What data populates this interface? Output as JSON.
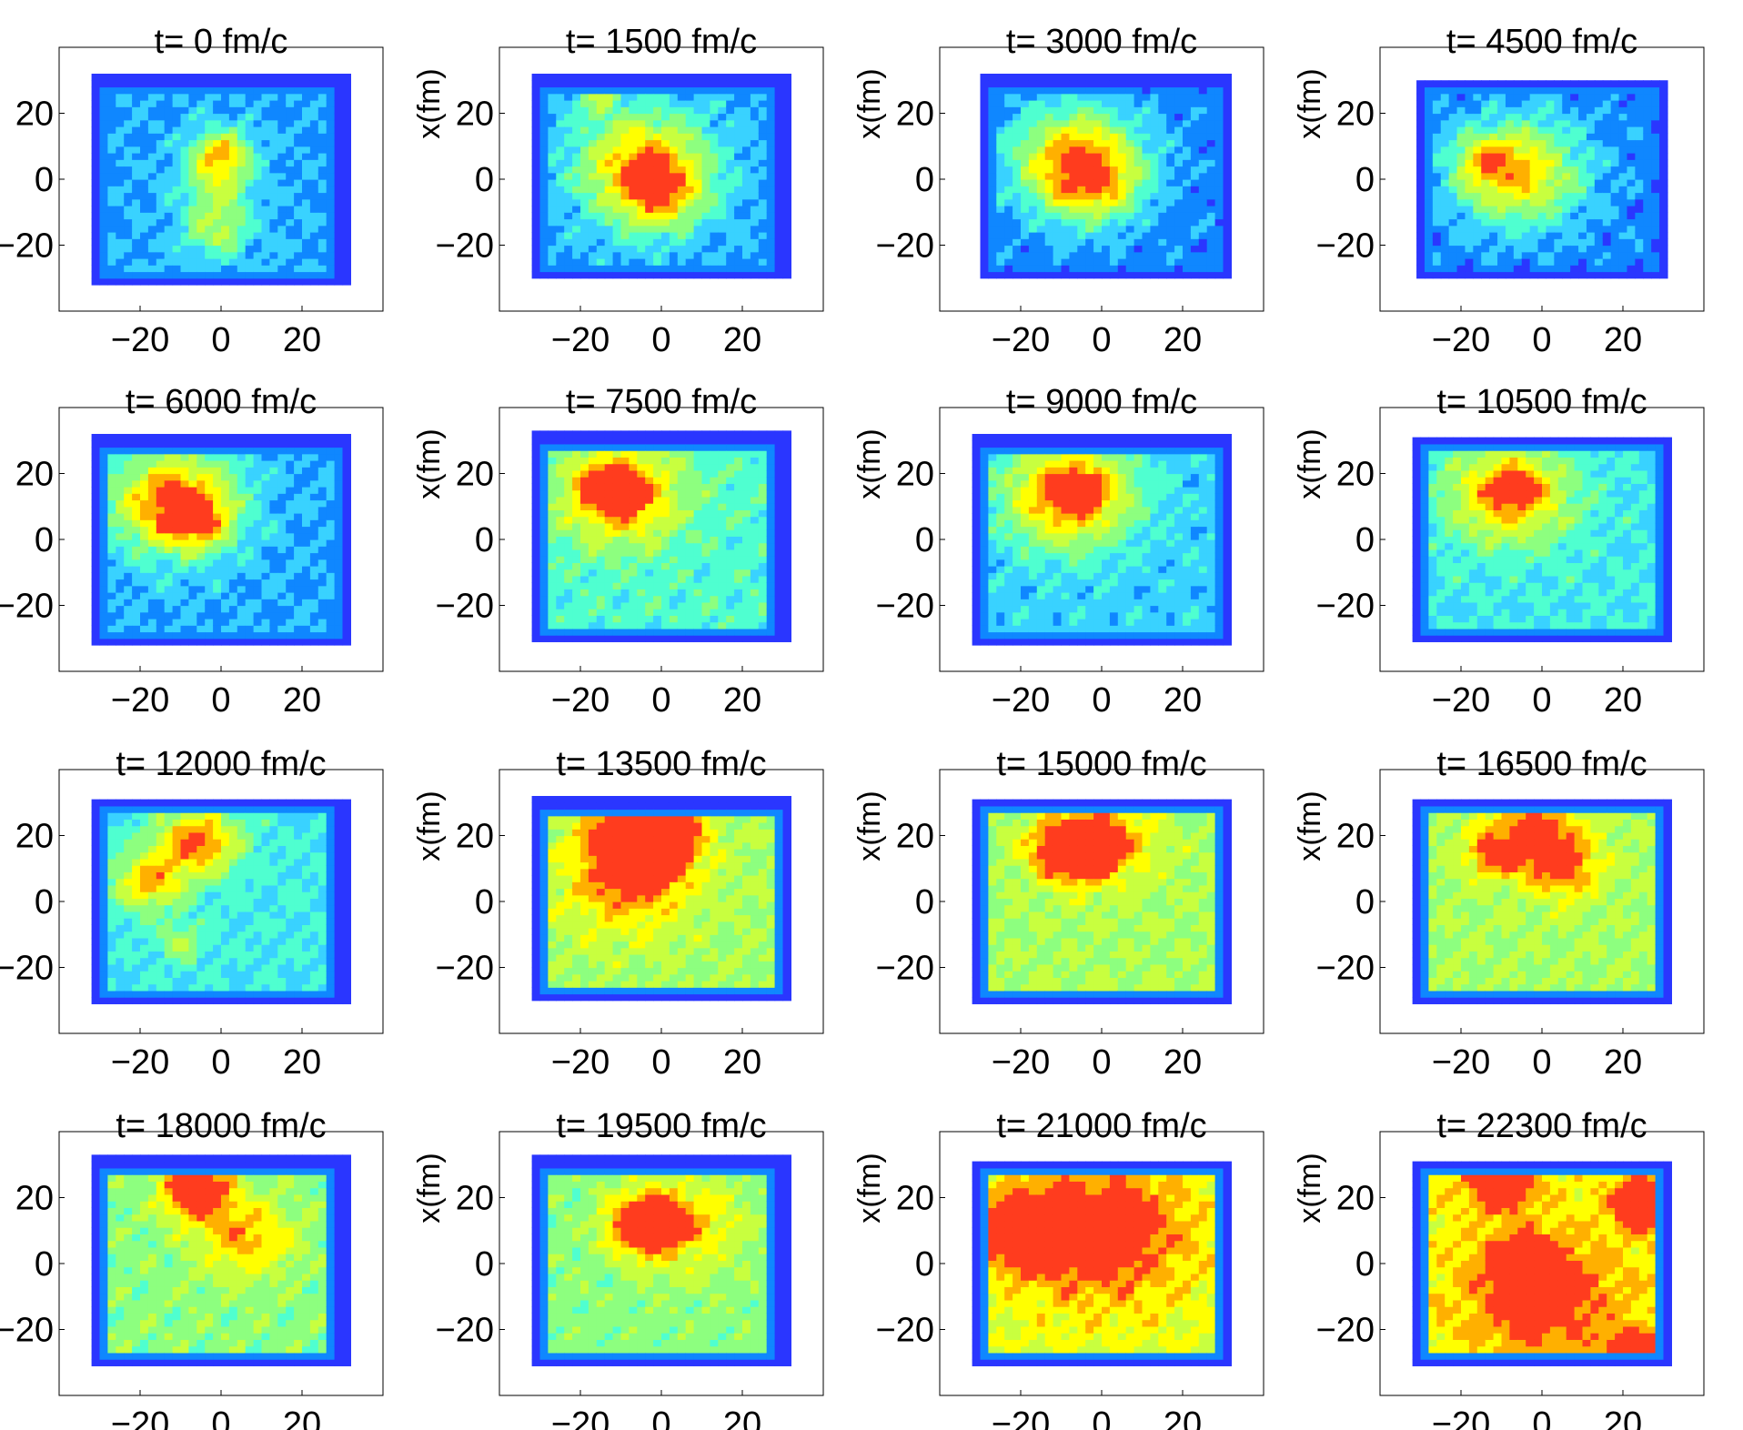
{
  "chart_data": {
    "type": "heatmap",
    "colormap": [
      "#7f00ff",
      "#2a36ff",
      "#0f87ff",
      "#39d2ff",
      "#4fffd0",
      "#8dff7f",
      "#c8ff3f",
      "#ffff00",
      "#ffb000",
      "#ff3c1e",
      "#d80000"
    ],
    "panel_xticks": [
      -20,
      0,
      20
    ],
    "panel_yticks": [
      20,
      0,
      -20
    ],
    "xlim": [
      -40,
      40
    ],
    "ylim": [
      -40,
      40
    ],
    "ylabel": "x(fm)",
    "panels": [
      {
        "title": "t= 0 fm/c",
        "level": 0.5,
        "bg": 0.3,
        "extent": [
          -32,
          31,
          -32,
          31
        ],
        "blobs": [
          [
            0,
            8,
            5,
            1.0
          ],
          [
            -1,
            -2,
            6,
            0.55
          ],
          [
            -1,
            -15,
            6,
            0.6
          ]
        ]
      },
      {
        "title": "t= 1500 fm/c",
        "level": 0.6,
        "bg": 0.3,
        "extent": [
          -32,
          31,
          -30,
          31
        ],
        "blobs": [
          [
            -4,
            4,
            11,
            1.0
          ],
          [
            0,
            -6,
            7,
            0.5
          ],
          [
            -16,
            24,
            4,
            0.4
          ]
        ]
      },
      {
        "title": "t= 3000 fm/c",
        "level": 0.6,
        "bg": 0.25,
        "extent": [
          -30,
          32,
          -30,
          31
        ],
        "blobs": [
          [
            -6,
            6,
            11,
            1.0
          ],
          [
            -2,
            -2,
            8,
            0.5
          ]
        ]
      },
      {
        "title": "t= 4500 fm/c",
        "level": 0.55,
        "bg": 0.25,
        "extent": [
          -31,
          31,
          -30,
          30
        ],
        "blobs": [
          [
            -6,
            2,
            11,
            1.0
          ],
          [
            -14,
            6,
            5,
            0.5
          ]
        ]
      },
      {
        "title": "t= 6000 fm/c",
        "level": 0.6,
        "bg": 0.3,
        "extent": [
          -32,
          32,
          -32,
          31
        ],
        "blobs": [
          [
            -12,
            12,
            11,
            1.0
          ],
          [
            -6,
            6,
            6,
            0.6
          ]
        ]
      },
      {
        "title": "t= 7500 fm/c",
        "level": 0.55,
        "bg": 0.45,
        "extent": [
          -32,
          31,
          -31,
          32
        ],
        "blobs": [
          [
            -10,
            14,
            10,
            0.95
          ],
          [
            -14,
            16,
            4,
            0.7
          ]
        ]
      },
      {
        "title": "t= 9000 fm/c",
        "level": 0.6,
        "bg": 0.35,
        "extent": [
          -32,
          32,
          -32,
          31
        ],
        "blobs": [
          [
            -8,
            14,
            11,
            1.0
          ],
          [
            -6,
            14,
            4,
            0.6
          ]
        ]
      },
      {
        "title": "t= 10500 fm/c",
        "level": 0.55,
        "bg": 0.4,
        "extent": [
          -32,
          32,
          -31,
          31
        ],
        "blobs": [
          [
            -8,
            14,
            10,
            0.95
          ],
          [
            -6,
            16,
            3,
            0.6
          ]
        ]
      },
      {
        "title": "t= 12000 fm/c",
        "level": 0.55,
        "bg": 0.4,
        "extent": [
          -32,
          31,
          -31,
          31
        ],
        "blobs": [
          [
            -6,
            18,
            7,
            1.0
          ],
          [
            -18,
            6,
            6,
            0.75
          ],
          [
            -10,
            -12,
            4,
            0.4
          ]
        ]
      },
      {
        "title": "t= 13500 fm/c",
        "level": 0.65,
        "bg": 0.6,
        "extent": [
          -32,
          32,
          -30,
          31
        ],
        "blobs": [
          [
            -6,
            20,
            8,
            1.0
          ],
          [
            0,
            20,
            6,
            0.7
          ],
          [
            -8,
            6,
            10,
            0.5
          ]
        ]
      },
      {
        "title": "t= 15000 fm/c",
        "level": 0.6,
        "bg": 0.6,
        "extent": [
          -32,
          32,
          -31,
          31
        ],
        "blobs": [
          [
            -8,
            16,
            6,
            1.0
          ],
          [
            0,
            18,
            8,
            0.6
          ]
        ]
      },
      {
        "title": "t= 16500 fm/c",
        "level": 0.55,
        "bg": 0.6,
        "extent": [
          -32,
          32,
          -31,
          31
        ],
        "blobs": [
          [
            -2,
            20,
            8,
            0.8
          ],
          [
            -12,
            14,
            4,
            0.6
          ],
          [
            6,
            10,
            6,
            0.5
          ]
        ]
      },
      {
        "title": "t= 18000 fm/c",
        "level": 0.55,
        "bg": 0.55,
        "extent": [
          -32,
          31,
          -31,
          32
        ],
        "blobs": [
          [
            -6,
            22,
            6,
            1.0
          ],
          [
            6,
            8,
            8,
            0.55
          ]
        ]
      },
      {
        "title": "t= 19500 fm/c",
        "level": 0.6,
        "bg": 0.55,
        "extent": [
          -32,
          31,
          -31,
          32
        ],
        "blobs": [
          [
            -4,
            12,
            6,
            1.0
          ],
          [
            6,
            12,
            10,
            0.4
          ]
        ]
      },
      {
        "title": "t= 21000 fm/c",
        "level": 0.6,
        "bg": 0.7,
        "extent": [
          -32,
          32,
          -31,
          31
        ],
        "blobs": [
          [
            -18,
            10,
            7,
            1.0
          ],
          [
            0,
            10,
            14,
            0.6
          ]
        ]
      },
      {
        "title": "t= 22300 fm/c",
        "level": 0.55,
        "bg": 0.75,
        "extent": [
          -32,
          32,
          -31,
          31
        ],
        "blobs": [
          [
            -10,
            24,
            5,
            0.9
          ],
          [
            26,
            18,
            5,
            1.0
          ],
          [
            -4,
            0,
            5,
            0.8
          ],
          [
            22,
            -26,
            4,
            0.8
          ],
          [
            0,
            -10,
            12,
            0.5
          ]
        ]
      }
    ]
  }
}
